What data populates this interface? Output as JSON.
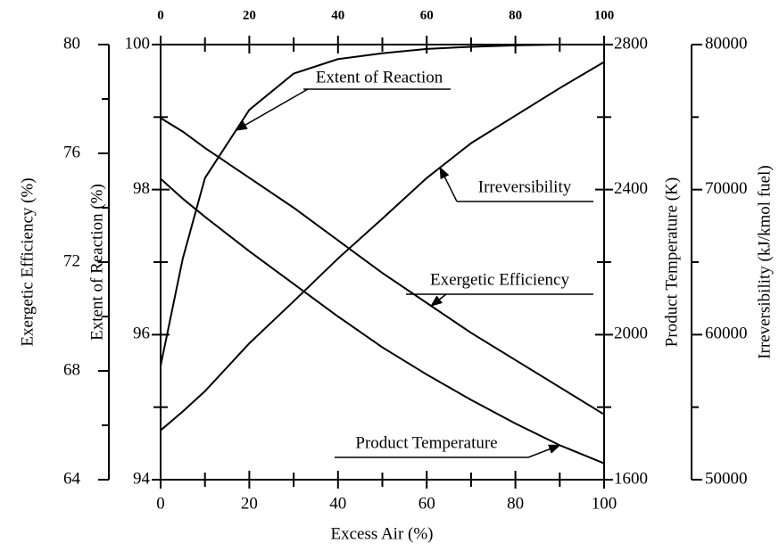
{
  "chart_data": {
    "type": "line",
    "xlabel": "Excess Air (%)",
    "xlim": [
      0,
      100
    ],
    "xticks": [
      0,
      20,
      40,
      60,
      80,
      100
    ],
    "x": [
      0,
      5,
      10,
      20,
      30,
      40,
      50,
      60,
      70,
      80,
      90,
      100
    ],
    "axes": [
      {
        "label": "Exergetic Efficiency (%)",
        "lim": [
          64,
          80
        ],
        "ticks": [
          64,
          68,
          72,
          76,
          80
        ]
      },
      {
        "label": "Extent of Reaction (%)",
        "lim": [
          94,
          100
        ],
        "ticks": [
          94,
          96,
          98,
          100
        ]
      },
      {
        "label": "Product Temperature (K)",
        "lim": [
          1600,
          2800
        ],
        "ticks": [
          1600,
          2000,
          2400,
          2800
        ]
      },
      {
        "label": "Irreversibility (kJ/kmol fuel)",
        "lim": [
          50000,
          80000
        ],
        "ticks": [
          50000,
          60000,
          70000,
          80000
        ]
      }
    ],
    "series": [
      {
        "name": "Extent of Reaction",
        "axis": 1,
        "color": "#000000",
        "values": [
          95.57,
          97.05,
          98.16,
          99.1,
          99.6,
          99.8,
          99.88,
          99.94,
          99.97,
          99.99,
          100,
          100
        ]
      },
      {
        "name": "Irreversibility",
        "axis": 3,
        "color": "#000000",
        "values": [
          53400,
          54700,
          56100,
          59400,
          62300,
          65250,
          68000,
          70800,
          73200,
          75100,
          77000,
          78800
        ]
      },
      {
        "name": "Exergetic Efficiency",
        "axis": 0,
        "color": "#000000",
        "values": [
          77.3,
          76.8,
          76.2,
          75.1,
          74.0,
          72.8,
          71.6,
          70.5,
          69.4,
          68.4,
          67.4,
          66.4
        ]
      },
      {
        "name": "Product Temperature",
        "axis": 2,
        "color": "#000000",
        "values": [
          2430,
          2375,
          2325,
          2230,
          2140,
          2050,
          1965,
          1890,
          1820,
          1755,
          1695,
          1645
        ]
      }
    ]
  }
}
